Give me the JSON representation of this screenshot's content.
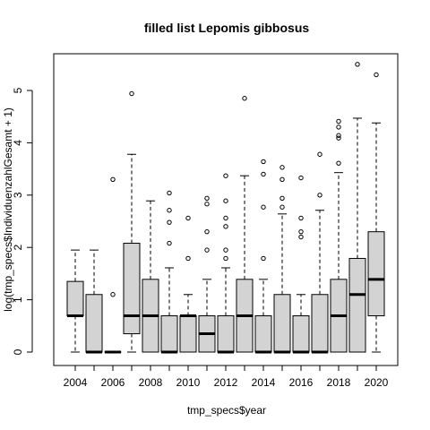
{
  "chart_data": {
    "type": "boxplot",
    "title": "filled list Lepomis gibbosus",
    "xlabel": "tmp_specs$year",
    "ylabel": "log(tmp_specs$IndividuenzahlGesamt + 1)",
    "ylim": [
      -0.15,
      5.7
    ],
    "y_ticks": [
      0,
      1,
      2,
      3,
      4,
      5
    ],
    "y_tick_labels": [
      "0",
      "1",
      "2",
      "3",
      "4",
      "5"
    ],
    "x_tick_labels": [
      "2004",
      "2006",
      "2008",
      "2010",
      "2012",
      "2014",
      "2016",
      "2018",
      "2020"
    ],
    "grid": false,
    "legend": "none",
    "box_fill": "#d3d3d3",
    "categories": [
      "2004",
      "2005",
      "2006",
      "2007",
      "2008",
      "2009",
      "2010",
      "2011",
      "2012",
      "2013",
      "2014",
      "2015",
      "2016",
      "2017",
      "2018",
      "2019",
      "2020"
    ],
    "boxes": [
      {
        "year": "2004",
        "lower_whisker": 0,
        "q1": 0.693,
        "median": 0.693,
        "q3": 1.35,
        "upper_whisker": 1.95,
        "outliers": []
      },
      {
        "year": "2005",
        "lower_whisker": 0,
        "q1": 0,
        "median": 0,
        "q3": 1.1,
        "upper_whisker": 1.95,
        "outliers": []
      },
      {
        "year": "2006",
        "lower_whisker": 0,
        "q1": 0,
        "median": 0,
        "q3": 0,
        "upper_whisker": 0,
        "outliers": [
          1.1,
          3.3
        ]
      },
      {
        "year": "2007",
        "lower_whisker": 0,
        "q1": 0.35,
        "median": 0.693,
        "q3": 2.08,
        "upper_whisker": 3.78,
        "outliers": [
          4.94
        ]
      },
      {
        "year": "2008",
        "lower_whisker": 0,
        "q1": 0,
        "median": 0.693,
        "q3": 1.39,
        "upper_whisker": 2.89,
        "outliers": []
      },
      {
        "year": "2009",
        "lower_whisker": 0,
        "q1": 0,
        "median": 0,
        "q3": 0.693,
        "upper_whisker": 1.61,
        "outliers": [
          2.08,
          2.48,
          2.71,
          3.04
        ]
      },
      {
        "year": "2010",
        "lower_whisker": 0,
        "q1": 0,
        "median": 0.693,
        "q3": 0.693,
        "upper_whisker": 1.1,
        "outliers": [
          1.79,
          2.56
        ]
      },
      {
        "year": "2011",
        "lower_whisker": 0,
        "q1": 0,
        "median": 0.35,
        "q3": 0.693,
        "upper_whisker": 1.39,
        "outliers": [
          1.95,
          2.3,
          2.83,
          2.94
        ]
      },
      {
        "year": "2012",
        "lower_whisker": 0,
        "q1": 0,
        "median": 0,
        "q3": 0.693,
        "upper_whisker": 1.61,
        "outliers": [
          1.79,
          1.95,
          2.4,
          2.56,
          2.89,
          3.37
        ]
      },
      {
        "year": "2013",
        "lower_whisker": 0,
        "q1": 0,
        "median": 0.693,
        "q3": 1.39,
        "upper_whisker": 3.37,
        "outliers": [
          4.85
        ]
      },
      {
        "year": "2014",
        "lower_whisker": 0,
        "q1": 0,
        "median": 0,
        "q3": 0.693,
        "upper_whisker": 1.39,
        "outliers": [
          1.79,
          2.77,
          3.4,
          3.64
        ]
      },
      {
        "year": "2015",
        "lower_whisker": 0,
        "q1": 0,
        "median": 0,
        "q3": 1.1,
        "upper_whisker": 2.64,
        "outliers": [
          2.77,
          2.94,
          3.3,
          3.53
        ]
      },
      {
        "year": "2016",
        "lower_whisker": 0,
        "q1": 0,
        "median": 0,
        "q3": 0.693,
        "upper_whisker": 1.1,
        "outliers": [
          2.2,
          2.3,
          2.56,
          3.33
        ]
      },
      {
        "year": "2017",
        "lower_whisker": 0,
        "q1": 0,
        "median": 0,
        "q3": 1.1,
        "upper_whisker": 2.71,
        "outliers": [
          3.0,
          3.78
        ]
      },
      {
        "year": "2018",
        "lower_whisker": 0,
        "q1": 0,
        "median": 0.693,
        "q3": 1.39,
        "upper_whisker": 3.43,
        "outliers": [
          3.61,
          4.09,
          4.14,
          4.3,
          4.41
        ]
      },
      {
        "year": "2019",
        "lower_whisker": 0,
        "q1": 0,
        "median": 1.1,
        "q3": 1.79,
        "upper_whisker": 4.47,
        "outliers": [
          5.5
        ]
      },
      {
        "year": "2020",
        "lower_whisker": 0,
        "q1": 0.693,
        "median": 1.39,
        "q3": 2.3,
        "upper_whisker": 4.38,
        "outliers": [
          5.3
        ]
      }
    ]
  }
}
